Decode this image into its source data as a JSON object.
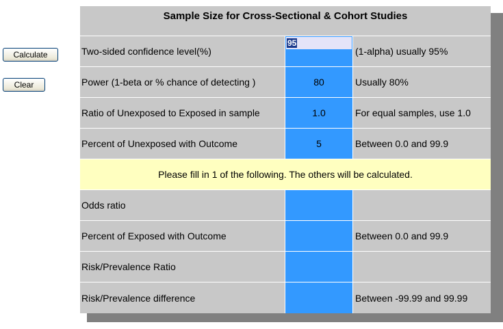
{
  "buttons": {
    "calculate_label": "Calculate",
    "clear_label": "Clear"
  },
  "form": {
    "title": "Sample Size for Cross-Sectional & Cohort Studies",
    "note": "Please fill in 1 of the following. The others will be calculated.",
    "rows_top": [
      {
        "label": "Two-sided confidence level(%)",
        "value": "95",
        "hint": "(1-alpha) usually 95%"
      },
      {
        "label": "Power (1-beta or % chance of detecting )",
        "value": "80",
        "hint": "Usually 80%"
      },
      {
        "label": "Ratio of Unexposed to Exposed in sample",
        "value": "1.0",
        "hint": "For equal samples, use 1.0"
      },
      {
        "label": "Percent of Unexposed with Outcome",
        "value": "5",
        "hint": "Between 0.0 and 99.9"
      }
    ],
    "rows_bottom": [
      {
        "label": "Odds ratio",
        "value": "",
        "hint": ""
      },
      {
        "label": "Percent of Exposed with Outcome",
        "value": "",
        "hint": "Between 0.0 and 99.9"
      },
      {
        "label": "Risk/Prevalence Ratio",
        "value": "",
        "hint": ""
      },
      {
        "label": "Risk/Prevalence difference",
        "value": "",
        "hint": "Between -99.99 and 99.99"
      }
    ]
  },
  "colors": {
    "panel_bg": "#c8c8c8",
    "input_bg": "#3399ff",
    "note_bg": "#ffffc0",
    "shadow": "#808080"
  }
}
